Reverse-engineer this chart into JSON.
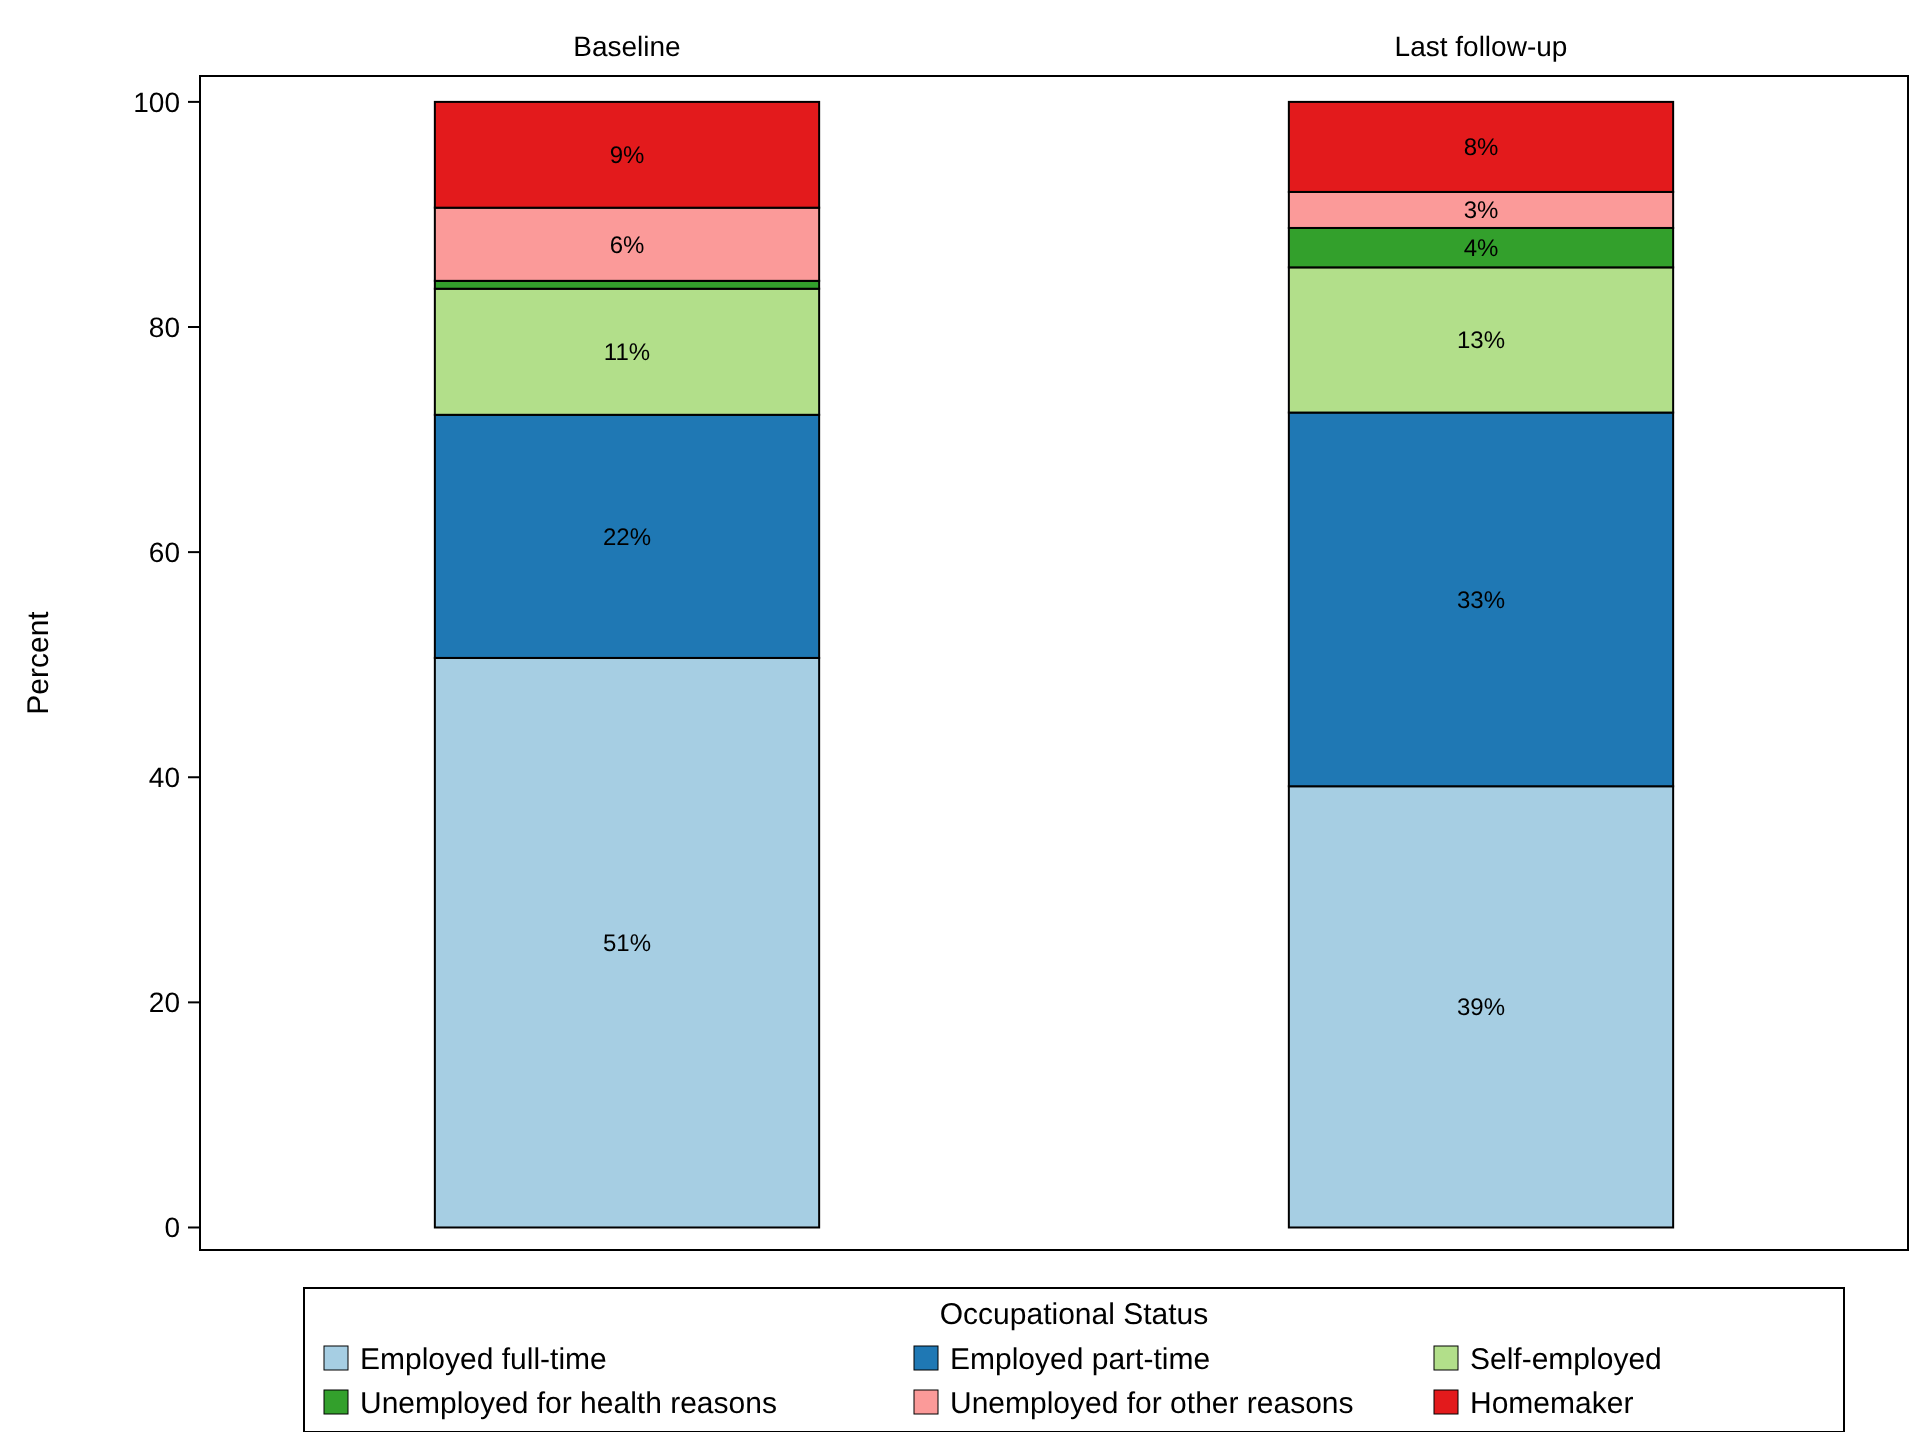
{
  "chart_data": {
    "type": "bar",
    "stacked": true,
    "categories": [
      "Baseline",
      "Last follow-up"
    ],
    "ylabel": "Percent",
    "ylim": [
      -2,
      102.3
    ],
    "yticks": [
      0,
      20,
      40,
      60,
      80,
      100
    ],
    "legend": "bottom",
    "legend_title": "Occupational Status",
    "series": [
      {
        "name": "Employed full-time",
        "color": "#a6cee3",
        "values": [
          50.6,
          39.2
        ],
        "value_labels": [
          "51%",
          "39%"
        ]
      },
      {
        "name": "Employed part-time",
        "color": "#1f78b4",
        "values": [
          21.6,
          33.2
        ],
        "value_labels": [
          "22%",
          "33%"
        ]
      },
      {
        "name": "Self-employed",
        "color": "#b2df8a",
        "values": [
          11.2,
          12.9
        ],
        "value_labels": [
          "11%",
          "13%"
        ]
      },
      {
        "name": "Unemployed for health reasons",
        "color": "#33a02c",
        "values": [
          0.7,
          3.5
        ],
        "value_labels": [
          null,
          "4%"
        ]
      },
      {
        "name": "Unemployed for other reasons",
        "color": "#fb9a99",
        "values": [
          6.5,
          3.2
        ],
        "value_labels": [
          "6%",
          "3%"
        ]
      },
      {
        "name": "Homemaker",
        "color": "#e31a1c",
        "values": [
          9.4,
          8.0
        ],
        "value_labels": [
          "9%",
          "8%"
        ]
      }
    ]
  }
}
